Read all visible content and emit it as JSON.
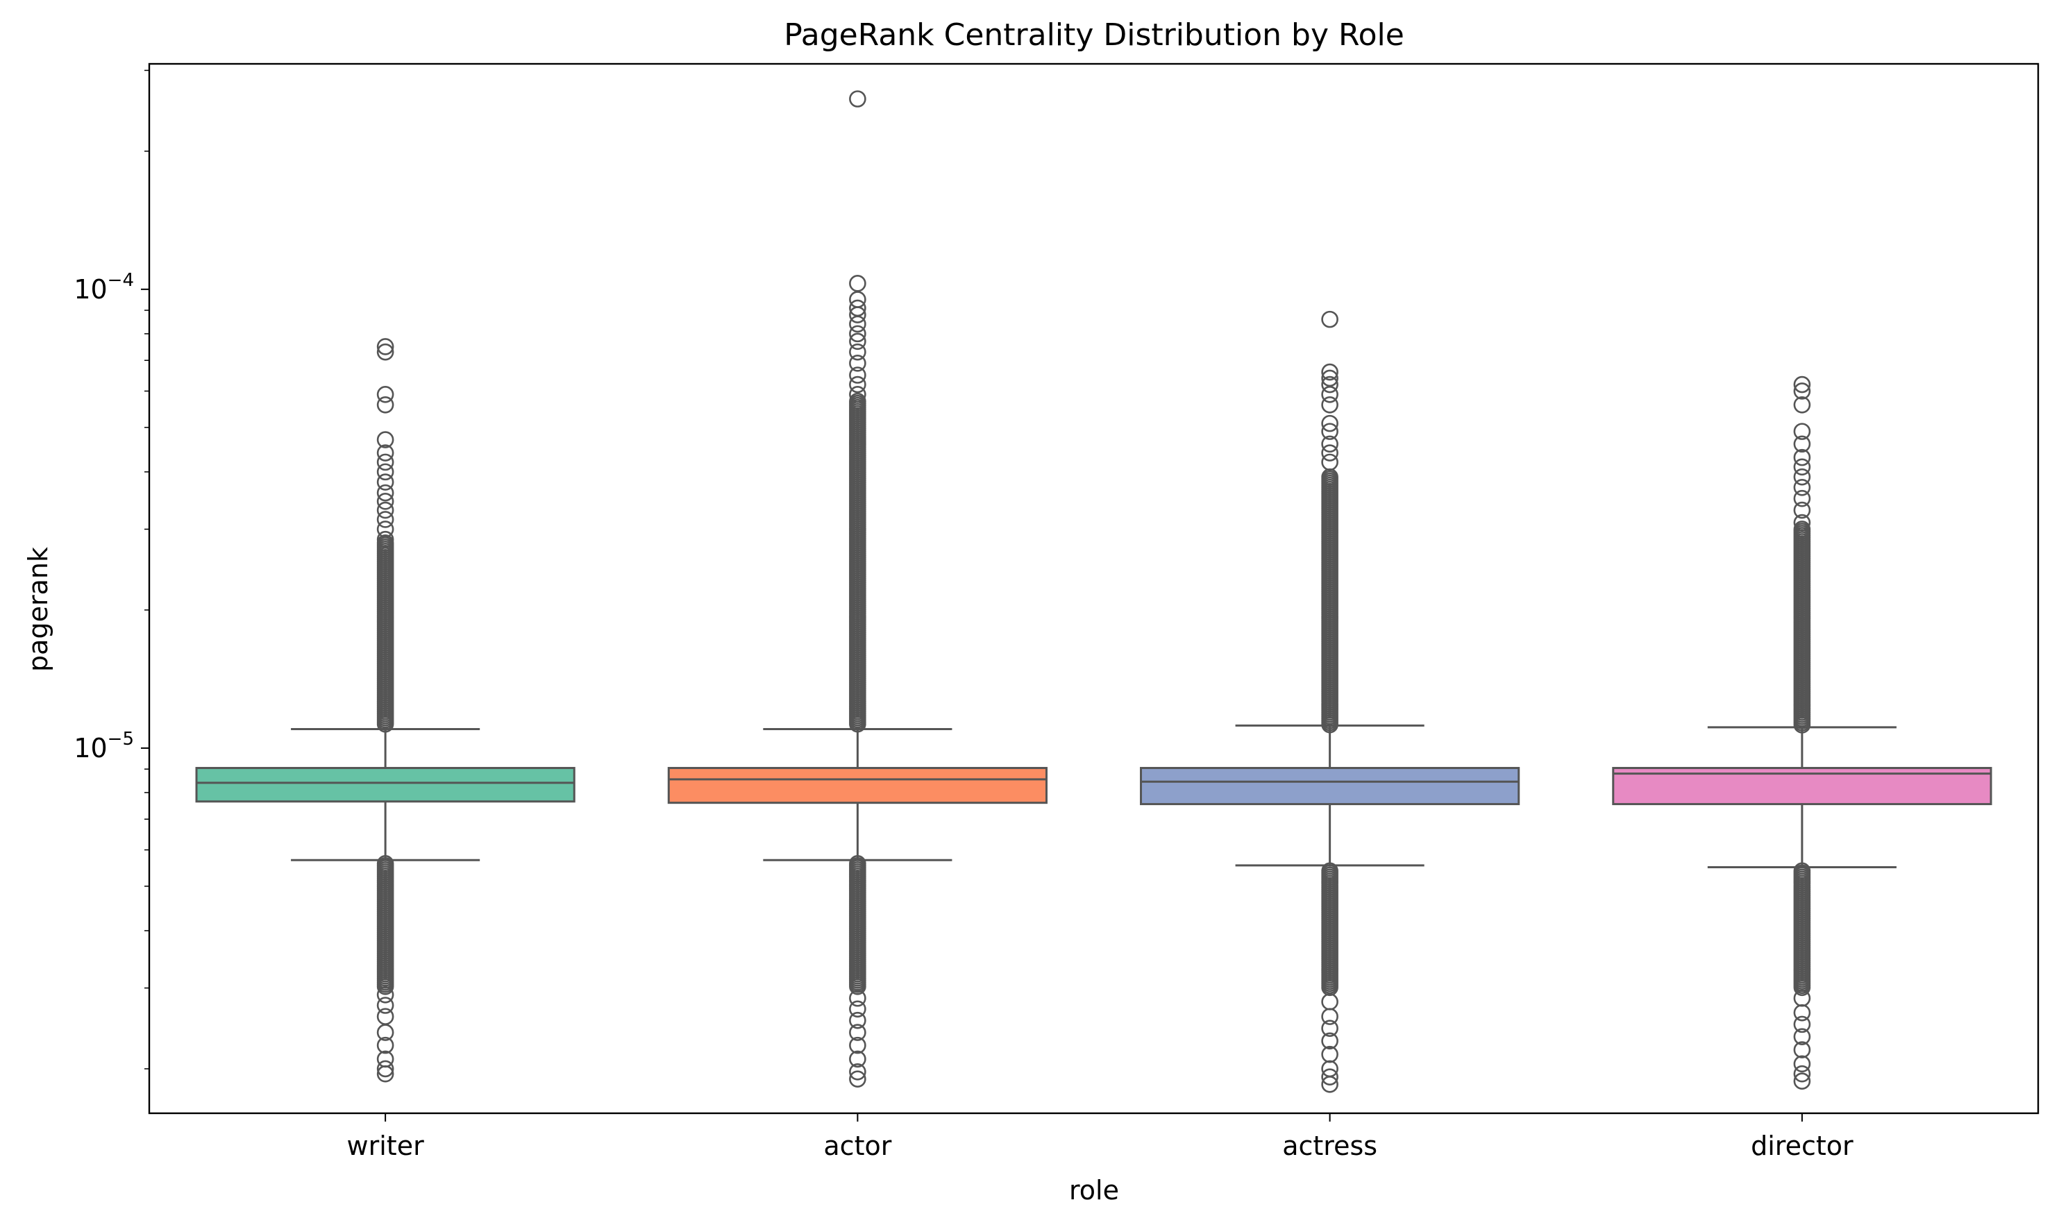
{
  "chart_data": {
    "type": "box",
    "title": "PageRank Centrality Distribution by Role",
    "xlabel": "role",
    "ylabel": "pagerank",
    "yscale": "log",
    "ylim": [
      1.6e-06,
      0.00031
    ],
    "yticks": [
      {
        "value": 1e-05,
        "base": "10",
        "exponent": "−5"
      },
      {
        "value": 0.0001,
        "base": "10",
        "exponent": "−4"
      }
    ],
    "categories": [
      "writer",
      "actor",
      "actress",
      "director"
    ],
    "colors": [
      "#66c2a5",
      "#fc8d62",
      "#8da0cb",
      "#e78ac3"
    ],
    "edge_color": "#555555",
    "series": [
      {
        "category": "writer",
        "q1": 7.65e-06,
        "median": 8.4e-06,
        "q3": 9.05e-06,
        "whisker_low": 5.7e-06,
        "whisker_high": 1.1e-05,
        "outliers_high": [
          7.5e-05,
          7.3e-05,
          5.9e-05,
          5.6e-05,
          4.7e-05,
          4.4e-05,
          4.2e-05,
          4e-05,
          3.8e-05,
          3.6e-05,
          3.45e-05,
          3.3e-05,
          3.15e-05,
          3e-05,
          2.85e-05
        ],
        "outliers_dense_high": [
          1.12e-05,
          2.8e-05
        ],
        "outliers_low": [
          2.1e-06,
          2e-06,
          1.95e-06,
          2.25e-06,
          2.4e-06,
          2.6e-06,
          2.75e-06,
          2.9e-06
        ],
        "outliers_dense_low": [
          3e-06,
          5.6e-06
        ]
      },
      {
        "category": "actor",
        "q1": 7.6e-06,
        "median": 8.55e-06,
        "q3": 9.05e-06,
        "whisker_low": 5.7e-06,
        "whisker_high": 1.1e-05,
        "outliers_high": [
          0.00026,
          0.000103,
          9.5e-05,
          9.1e-05,
          8.8e-05,
          8.4e-05,
          8e-05,
          7.7e-05,
          7.3e-05,
          6.9e-05,
          6.5e-05,
          6.2e-05,
          5.9e-05
        ],
        "outliers_dense_high": [
          1.12e-05,
          5.7e-05
        ],
        "outliers_low": [
          1.9e-06,
          1.97e-06,
          2.1e-06,
          2.25e-06,
          2.4e-06,
          2.55e-06,
          2.7e-06,
          2.85e-06
        ],
        "outliers_dense_low": [
          3e-06,
          5.6e-06
        ]
      },
      {
        "category": "actress",
        "q1": 7.55e-06,
        "median": 8.45e-06,
        "q3": 9.05e-06,
        "whisker_low": 5.55e-06,
        "whisker_high": 1.12e-05,
        "outliers_high": [
          8.6e-05,
          6.6e-05,
          6.4e-05,
          6.2e-05,
          5.9e-05,
          5.6e-05,
          5.1e-05,
          4.9e-05,
          4.6e-05,
          4.4e-05,
          4.2e-05
        ],
        "outliers_dense_high": [
          1.12e-05,
          3.9e-05
        ],
        "outliers_low": [
          1.85e-06,
          1.92e-06,
          2e-06,
          2.15e-06,
          2.3e-06,
          2.45e-06,
          2.6e-06,
          2.8e-06
        ],
        "outliers_dense_low": [
          3e-06,
          5.4e-06
        ]
      },
      {
        "category": "director",
        "q1": 7.55e-06,
        "median": 8.8e-06,
        "q3": 9.05e-06,
        "whisker_low": 5.5e-06,
        "whisker_high": 1.11e-05,
        "outliers_high": [
          6.2e-05,
          6e-05,
          5.6e-05,
          4.9e-05,
          4.6e-05,
          4.3e-05,
          4.1e-05,
          3.9e-05,
          3.7e-05,
          3.5e-05,
          3.3e-05,
          3.1e-05
        ],
        "outliers_dense_high": [
          1.12e-05,
          3e-05
        ],
        "outliers_low": [
          1.88e-06,
          1.95e-06,
          2.05e-06,
          2.2e-06,
          2.35e-06,
          2.5e-06,
          2.65e-06,
          2.85e-06
        ],
        "outliers_dense_low": [
          3e-06,
          5.4e-06
        ]
      }
    ]
  }
}
